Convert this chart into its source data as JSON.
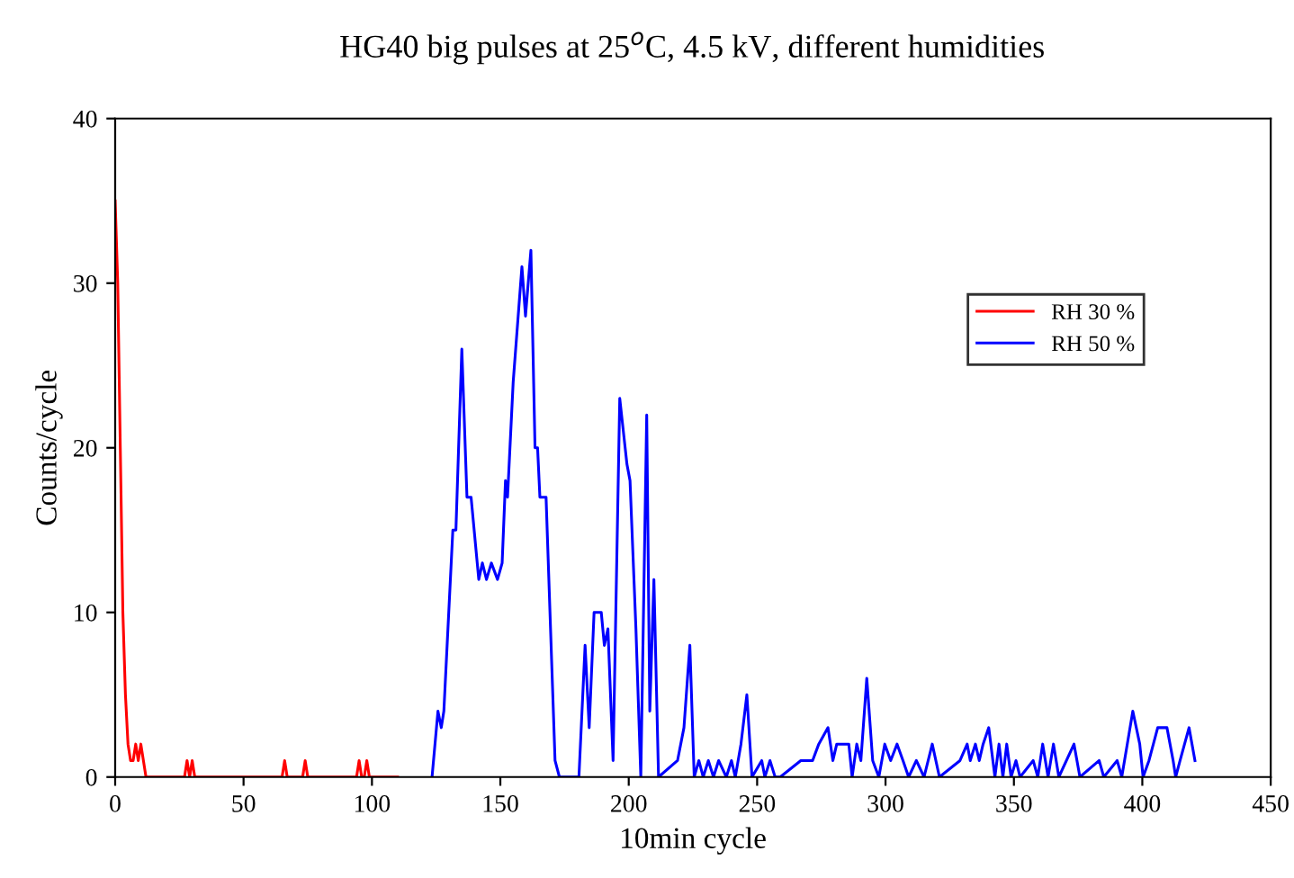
{
  "chart_data": {
    "type": "line",
    "title": "HG40 big pulses at 25$^{o}$C, 4.5 kV, different humidities",
    "xlabel": "10min cycle",
    "ylabel": "Counts/cycle",
    "xlim": [
      0,
      450
    ],
    "ylim": [
      0,
      40
    ],
    "xticks": [
      0,
      50,
      100,
      150,
      200,
      250,
      300,
      350,
      400,
      450
    ],
    "yticks": [
      0,
      10,
      20,
      30,
      40
    ],
    "grid": false,
    "legend": "upper right",
    "marker": "none",
    "line_style": "solid",
    "series": [
      {
        "name": "RH 30 %",
        "color": "#ff0000",
        "x": [
          0,
          1,
          2,
          3,
          4,
          5,
          6,
          7,
          8,
          9,
          10,
          11,
          12,
          13,
          27,
          28,
          29,
          30,
          31,
          32,
          65,
          66,
          67,
          73,
          74,
          75,
          94,
          95,
          96,
          97,
          98,
          99,
          110
        ],
        "values": [
          35,
          30,
          20,
          10,
          5,
          2,
          1,
          1,
          2,
          1,
          2,
          1,
          0,
          0,
          0,
          1,
          0,
          1,
          0,
          0,
          0,
          1,
          0,
          0,
          1,
          0,
          0,
          1,
          0,
          0,
          1,
          0,
          0
        ]
      },
      {
        "name": "RH 50 %",
        "color": "#0000ff",
        "x": [
          123.4,
          125.7,
          127,
          128,
          131.5,
          132.7,
          135,
          137,
          138.6,
          141.6,
          143,
          144.6,
          146.5,
          148.9,
          150.7,
          152,
          152.8,
          155,
          158.4,
          159.8,
          161.9,
          163.5,
          164.5,
          165.4,
          167.8,
          171.3,
          173,
          180.6,
          183,
          184.6,
          186.5,
          189.3,
          190.5,
          191.9,
          193.9,
          196.5,
          199.3,
          200.5,
          202.8,
          204.7,
          207,
          208.2,
          209.8,
          211.6,
          219,
          221.5,
          223.8,
          225.5,
          227.3,
          229,
          231,
          233,
          235,
          238,
          240,
          241.5,
          243.7,
          246,
          248,
          251.8,
          253,
          255,
          257,
          259,
          267,
          269,
          271.6,
          274,
          277.6,
          279.5,
          281,
          285.7,
          287,
          288.8,
          290.4,
          292.7,
          295,
          297.4,
          299.7,
          302,
          304.5,
          306.8,
          309,
          312,
          315,
          318.2,
          321,
          329,
          331.8,
          333,
          335,
          336.5,
          338,
          340.2,
          342.6,
          344.2,
          345.7,
          347.2,
          348.9,
          350.8,
          352.4,
          357.5,
          359.3,
          361.2,
          363.3,
          365.4,
          367.5,
          373.4,
          375.7,
          383.2,
          385,
          390.2,
          392,
          396.3,
          399,
          400.3,
          402.6,
          406,
          409.6,
          412,
          413,
          414.7,
          418.2,
          420.5
        ],
        "values": [
          0,
          4,
          3,
          4,
          15,
          15,
          26,
          17,
          17,
          12,
          13,
          12,
          13,
          12,
          13,
          18,
          17,
          24,
          31,
          28,
          32,
          20,
          20,
          17,
          17,
          1,
          0,
          0,
          8,
          3,
          10,
          10,
          8,
          9,
          1,
          23,
          19,
          18,
          9,
          0,
          22,
          4,
          12,
          0,
          1,
          3,
          8,
          0,
          1,
          0,
          1,
          0,
          1,
          0,
          1,
          0,
          2,
          5,
          0,
          1,
          0,
          1,
          0,
          0,
          1,
          1,
          1,
          2,
          3,
          1,
          2,
          2,
          0,
          2,
          1,
          6,
          1,
          0,
          2,
          1,
          2,
          1,
          0,
          1,
          0,
          2,
          0,
          1,
          2,
          1,
          2,
          1,
          2,
          3,
          0,
          2,
          0,
          2,
          0,
          1,
          0,
          1,
          0,
          2,
          0,
          2,
          0,
          2,
          0,
          1,
          0,
          1,
          0,
          4,
          2,
          0,
          1,
          3,
          3,
          1,
          0,
          1,
          3,
          1
        ]
      }
    ]
  }
}
